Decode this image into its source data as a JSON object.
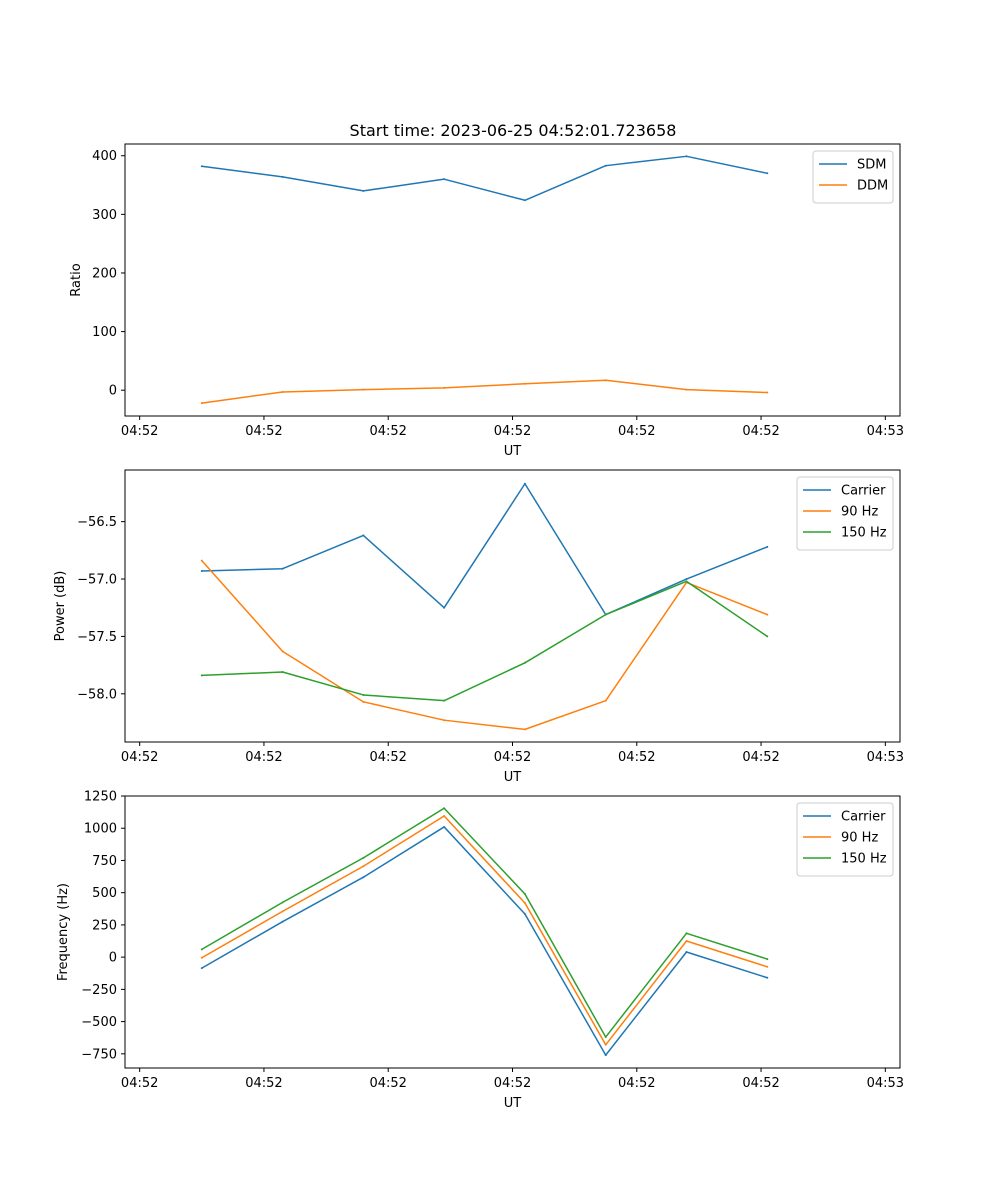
{
  "figure": {
    "title": "Start time: 2023-06-25 04:52:01.723658"
  },
  "chart_data": [
    {
      "type": "line",
      "ylabel": "Ratio",
      "xlabel": "UT",
      "ylim": [
        -44,
        420
      ],
      "yticks": [
        0,
        100,
        200,
        300,
        400
      ],
      "ytick_labels": [
        "0",
        "100",
        "200",
        "300",
        "400"
      ],
      "xticks": [
        0,
        1,
        2,
        3,
        4,
        5,
        6
      ],
      "xtick_labels": [
        "04:52",
        "04:52",
        "04:52",
        "04:52",
        "04:52",
        "04:52",
        "04:53"
      ],
      "xlim": [
        -0.118,
        6.118
      ],
      "x": [
        0.5,
        1.15,
        1.8,
        2.45,
        3.1,
        3.75,
        4.4,
        5.05
      ],
      "series": [
        {
          "name": "SDM",
          "color": "#1f77b4",
          "values": [
            382,
            364,
            340,
            360,
            324,
            383,
            399,
            370
          ]
        },
        {
          "name": "DDM",
          "color": "#ff7f0e",
          "values": [
            -22,
            -3,
            1,
            4,
            11,
            17,
            1,
            -4
          ]
        }
      ],
      "legend": "top-right",
      "grid": false
    },
    {
      "type": "line",
      "ylabel": "Power (dB)",
      "xlabel": "UT",
      "ylim": [
        -58.42,
        -56.05
      ],
      "yticks": [
        -58.0,
        -57.5,
        -57.0,
        -56.5
      ],
      "ytick_labels": [
        "−58.0",
        "−57.5",
        "−57.0",
        "−56.5"
      ],
      "xticks": [
        0,
        1,
        2,
        3,
        4,
        5,
        6
      ],
      "xtick_labels": [
        "04:52",
        "04:52",
        "04:52",
        "04:52",
        "04:52",
        "04:52",
        "04:53"
      ],
      "xlim": [
        -0.118,
        6.118
      ],
      "x": [
        0.5,
        1.15,
        1.8,
        2.45,
        3.1,
        3.75,
        4.4,
        5.05
      ],
      "series": [
        {
          "name": "Carrier",
          "color": "#1f77b4",
          "values": [
            -56.93,
            -56.91,
            -56.62,
            -57.25,
            -56.17,
            -57.31,
            -57.0,
            -56.72
          ]
        },
        {
          "name": "90 Hz",
          "color": "#ff7f0e",
          "values": [
            -56.84,
            -57.63,
            -58.07,
            -58.23,
            -58.31,
            -58.06,
            -57.03,
            -57.31
          ]
        },
        {
          "name": "150 Hz",
          "color": "#2ca02c",
          "values": [
            -57.84,
            -57.81,
            -58.01,
            -58.06,
            -57.73,
            -57.31,
            -57.02,
            -57.5
          ]
        }
      ],
      "legend": "top-right",
      "grid": false
    },
    {
      "type": "line",
      "ylabel": "Frequency (Hz)",
      "xlabel": "UT",
      "ylim": [
        -860,
        1250
      ],
      "yticks": [
        -750,
        -500,
        -250,
        0,
        250,
        500,
        750,
        1000,
        1250
      ],
      "ytick_labels": [
        "−750",
        "−500",
        "−250",
        "0",
        "250",
        "500",
        "750",
        "1000",
        "1250"
      ],
      "xticks": [
        0,
        1,
        2,
        3,
        4,
        5,
        6
      ],
      "xtick_labels": [
        "04:52",
        "04:52",
        "04:52",
        "04:52",
        "04:52",
        "04:52",
        "04:53"
      ],
      "xlim": [
        -0.118,
        6.118
      ],
      "x": [
        0.5,
        1.15,
        1.8,
        2.45,
        3.1,
        3.75,
        4.4,
        5.05
      ],
      "series": [
        {
          "name": "Carrier",
          "color": "#1f77b4",
          "values": [
            -85,
            275,
            620,
            1010,
            335,
            -760,
            40,
            -160
          ]
        },
        {
          "name": "90 Hz",
          "color": "#ff7f0e",
          "values": [
            -5,
            355,
            705,
            1095,
            420,
            -680,
            125,
            -75
          ]
        },
        {
          "name": "150 Hz",
          "color": "#2ca02c",
          "values": [
            60,
            425,
            770,
            1155,
            490,
            -620,
            185,
            -15
          ]
        }
      ],
      "legend": "top-right",
      "grid": false
    }
  ]
}
